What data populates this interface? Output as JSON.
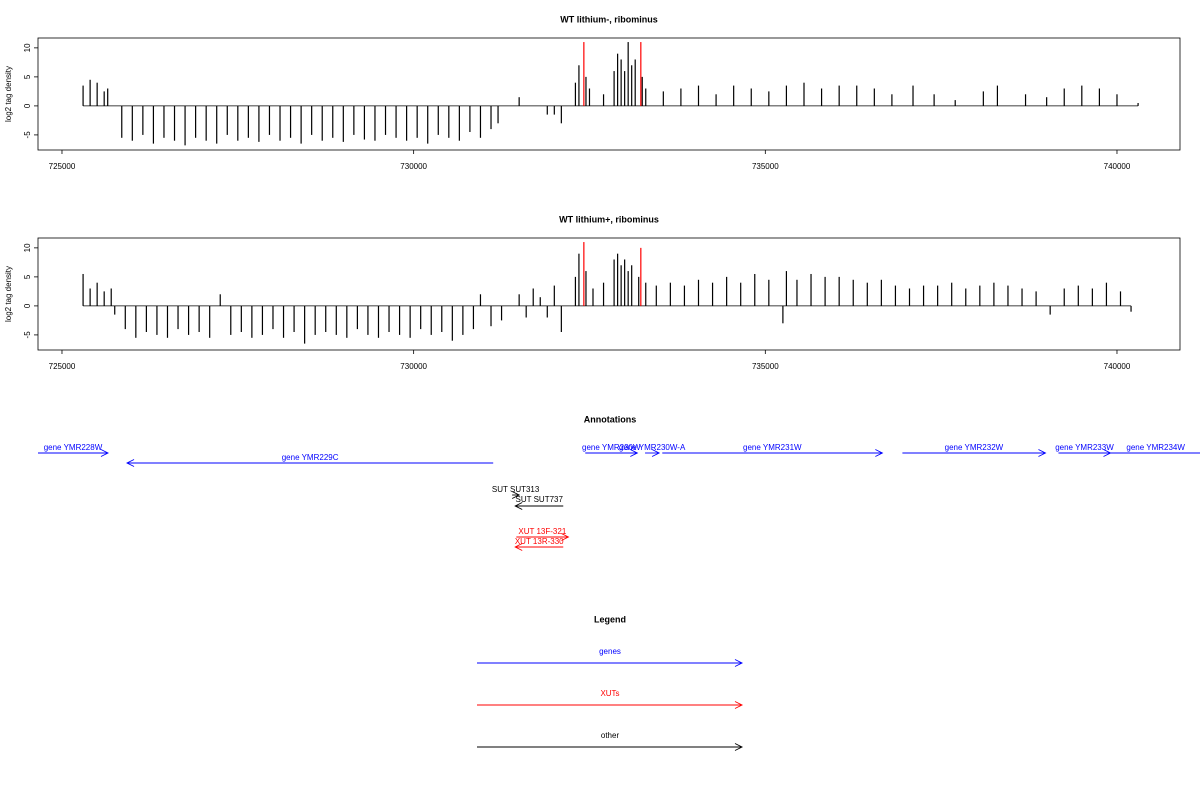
{
  "chart_data": [
    {
      "type": "bar",
      "title": "WT lithium-, ribominus",
      "ylabel": "log2 tag density",
      "xlim": [
        724659,
        740896
      ],
      "xticks": [
        725000,
        730000,
        735000,
        740000
      ],
      "ylim": [
        -7.6,
        11.7
      ],
      "yticks": [
        -5,
        0,
        5,
        10
      ],
      "series": [
        {
          "color": "#000000",
          "x": [
            725300,
            725400,
            725500,
            725600,
            725650,
            725850,
            726000,
            726150,
            726300,
            726450,
            726600,
            726750,
            726900,
            727050,
            727200,
            727350,
            727500,
            727650,
            727800,
            727950,
            728100,
            728250,
            728400,
            728550,
            728700,
            728850,
            729000,
            729150,
            729300,
            729450,
            729600,
            729750,
            729900,
            730050,
            730200,
            730350,
            730500,
            730650,
            730800,
            730950,
            731100,
            731200,
            731500,
            731900,
            732000,
            732100,
            732300,
            732350,
            732450,
            732500,
            732700,
            732850,
            732900,
            732950,
            733000,
            733050,
            733100,
            733150,
            733250,
            733300,
            733550,
            733800,
            734050,
            734300,
            734550,
            734800,
            735050,
            735300,
            735550,
            735800,
            736050,
            736300,
            736550,
            736800,
            737100,
            737400,
            737700,
            738100,
            738300,
            738700,
            739000,
            739250,
            739500,
            739750,
            740000,
            740300
          ],
          "values": [
            3.5,
            4.5,
            4,
            2.5,
            3,
            -5.5,
            -6,
            -5,
            -6.5,
            -5.5,
            -6,
            -6.8,
            -5.5,
            -6,
            -6.5,
            -5,
            -6,
            -5.5,
            -6.2,
            -5,
            -6,
            -5.5,
            -6.5,
            -5,
            -6,
            -5.5,
            -6.2,
            -5,
            -5.8,
            -6,
            -5,
            -5.5,
            -6,
            -5.5,
            -6.5,
            -5,
            -5.5,
            -6,
            -4.5,
            -5.5,
            -4,
            -3,
            1.5,
            -1.5,
            -1.5,
            -3,
            4,
            7,
            5,
            3,
            2,
            6,
            9,
            8,
            6,
            11,
            7,
            8,
            5,
            3,
            2.5,
            3,
            3.5,
            2,
            3.5,
            3,
            2.5,
            3.5,
            4,
            3,
            3.5,
            3.5,
            3,
            2,
            3.5,
            2,
            1,
            2.5,
            3.5,
            2,
            1.5,
            3,
            3.5,
            3,
            2,
            0.5
          ]
        },
        {
          "color": "#ff0000",
          "x": [
            732420,
            733230
          ],
          "values": [
            11,
            11
          ]
        }
      ]
    },
    {
      "type": "bar",
      "title": "WT lithium+, ribominus",
      "ylabel": "log2 tag density",
      "xlim": [
        724659,
        740896
      ],
      "xticks": [
        725000,
        730000,
        735000,
        740000
      ],
      "ylim": [
        -7.6,
        11.7
      ],
      "yticks": [
        -5,
        0,
        5,
        10
      ],
      "series": [
        {
          "color": "#000000",
          "x": [
            725300,
            725400,
            725500,
            725600,
            725700,
            725750,
            725900,
            726050,
            726200,
            726350,
            726500,
            726650,
            726800,
            726950,
            727100,
            727250,
            727400,
            727550,
            727700,
            727850,
            728000,
            728150,
            728300,
            728450,
            728600,
            728750,
            728900,
            729050,
            729200,
            729350,
            729500,
            729650,
            729800,
            729950,
            730100,
            730250,
            730400,
            730550,
            730700,
            730850,
            730950,
            731100,
            731250,
            731500,
            731600,
            731700,
            731800,
            731900,
            732000,
            732100,
            732300,
            732350,
            732450,
            732550,
            732700,
            732850,
            732900,
            732950,
            733000,
            733050,
            733100,
            733200,
            733300,
            733450,
            733650,
            733850,
            734050,
            734250,
            734450,
            734650,
            734850,
            735050,
            735250,
            735300,
            735450,
            735650,
            735850,
            736050,
            736250,
            736450,
            736650,
            736850,
            737050,
            737250,
            737450,
            737650,
            737850,
            738050,
            738250,
            738450,
            738650,
            738850,
            739050,
            739250,
            739450,
            739650,
            739850,
            740050,
            740200
          ],
          "values": [
            5.5,
            3,
            4,
            2.5,
            3,
            -1.5,
            -4,
            -5.5,
            -4.5,
            -5,
            -5.5,
            -4,
            -5,
            -4.5,
            -5.5,
            2,
            -5,
            -4.5,
            -5.5,
            -5,
            -4,
            -5.5,
            -4.5,
            -6.5,
            -5,
            -4.5,
            -5,
            -5.5,
            -4,
            -5,
            -5.5,
            -4.5,
            -5,
            -5.5,
            -4,
            -5,
            -4.5,
            -6,
            -5,
            -4,
            2,
            -3.5,
            -2.5,
            2,
            -2,
            3,
            1.5,
            -2,
            3.5,
            -4.5,
            5,
            9,
            6,
            3,
            4,
            8,
            9,
            7,
            8,
            6,
            7,
            5,
            4,
            3.5,
            4,
            3.5,
            4.5,
            4,
            5,
            4,
            5.5,
            4.5,
            -3,
            6,
            4.5,
            5.5,
            5,
            5,
            4.5,
            4,
            4.5,
            3.5,
            3,
            3.5,
            3.5,
            4,
            3,
            3.5,
            4,
            3.5,
            3,
            2.5,
            -1.5,
            3,
            3.5,
            3,
            4,
            2.5,
            -1
          ]
        },
        {
          "color": "#ff0000",
          "x": [
            732420,
            733230
          ],
          "values": [
            11,
            10
          ]
        }
      ]
    }
  ],
  "annotations": {
    "title": "Annotations",
    "features": [
      {
        "label": "gene YMR228W",
        "start": 724659,
        "end": 725654,
        "strand": "+",
        "color": "#0000ff"
      },
      {
        "label": "gene YMR229C",
        "start": 725925,
        "end": 731131,
        "strand": "-",
        "color": "#0000ff"
      },
      {
        "label": "gene YMR230W",
        "start": 732440,
        "end": 733180,
        "strand": "+",
        "color": "#0000ff"
      },
      {
        "label": "gene YMR230W-A",
        "start": 733290,
        "end": 733490,
        "strand": "+",
        "color": "#0000ff"
      },
      {
        "label": "gene YMR231W",
        "start": 733535,
        "end": 736664,
        "strand": "+",
        "color": "#0000ff"
      },
      {
        "label": "gene YMR232W",
        "start": 736949,
        "end": 738983,
        "strand": "+",
        "color": "#0000ff"
      },
      {
        "label": "gene YMR233W",
        "start": 739168,
        "end": 739908,
        "strand": "+",
        "color": "#0000ff"
      },
      {
        "label": "gene YMR234W",
        "start": 739725,
        "end": 741375,
        "strand": "+",
        "color": "#0000ff"
      },
      {
        "label": "SUT SUT313",
        "start": 731400,
        "end": 731500,
        "strand": "+",
        "color": "#000000"
      },
      {
        "label": "SUT SUT737",
        "start": 731444,
        "end": 732127,
        "strand": "-",
        "color": "#000000"
      },
      {
        "label": "XUT 13F-321",
        "start": 731460,
        "end": 732200,
        "strand": "+",
        "color": "#ff0000"
      },
      {
        "label": "XUT 13R-330",
        "start": 731444,
        "end": 732127,
        "strand": "-",
        "color": "#ff0000"
      }
    ]
  },
  "legend": {
    "title": "Legend",
    "entries": [
      {
        "label": "genes",
        "color": "#0000ff"
      },
      {
        "label": "XUTs",
        "color": "#ff0000"
      },
      {
        "label": "other",
        "color": "#000000"
      }
    ]
  }
}
